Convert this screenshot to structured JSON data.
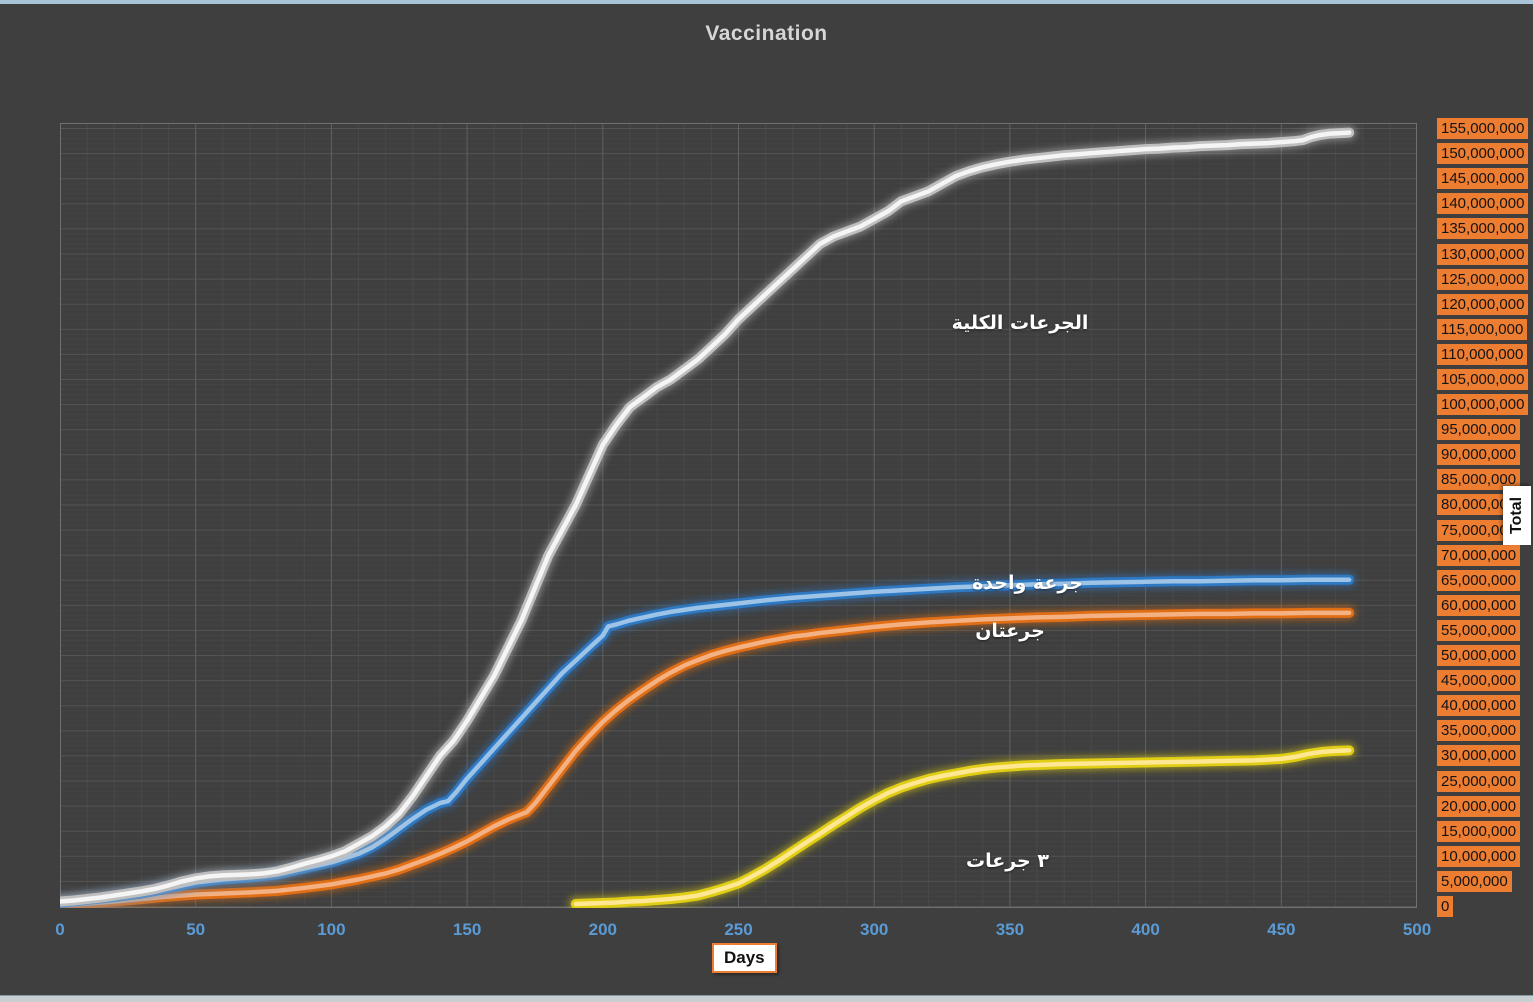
{
  "chart_data": {
    "type": "line",
    "title": "Vaccination",
    "background_color": "#3F3F3F",
    "grid": "on",
    "legend_position": "none (labels drawn next to lines)",
    "x_axis": {
      "label": "Days",
      "min": 0,
      "max": 500,
      "tick_step": 50,
      "minor_step": 10,
      "tick_values": [
        0,
        50,
        100,
        150,
        200,
        250,
        300,
        350,
        400,
        450,
        500
      ],
      "tick_labels": [
        "0",
        "50",
        "100",
        "150",
        "200",
        "250",
        "300",
        "350",
        "400",
        "450",
        "500"
      ],
      "tick_color": "#5B9BD5"
    },
    "y_axis": {
      "label": "Total",
      "unit": "doses",
      "min": 0,
      "max": 155000000,
      "tick_step": 5000000,
      "tick_values_millions": [
        155,
        150,
        145,
        140,
        135,
        130,
        125,
        120,
        115,
        110,
        105,
        100,
        95,
        90,
        85,
        80,
        75,
        70,
        65,
        60,
        55,
        50,
        45,
        40,
        35,
        30,
        25,
        20,
        15,
        10,
        5,
        0
      ],
      "tick_labels": [
        "155,000,000",
        "150,000,000",
        "145,000,000",
        "140,000,000",
        "135,000,000",
        "130,000,000",
        "125,000,000",
        "120,000,000",
        "115,000,000",
        "110,000,000",
        "105,000,000",
        "100,000,000",
        "95,000,000",
        "90,000,000",
        "85,000,000",
        "80,000,000",
        "75,000,000",
        "70,000,000",
        "65,000,000",
        "60,000,000",
        "55,000,000",
        "50,000,000",
        "45,000,000",
        "40,000,000",
        "35,000,000",
        "30,000,000",
        "25,000,000",
        "20,000,000",
        "15,000,000",
        "10,000,000",
        "5,000,000",
        "0"
      ],
      "tick_box_color": "#ED7D31",
      "tick_text_color": "#141414"
    },
    "series": [
      {
        "id": "total-doses",
        "label": "الجرعات الكلية",
        "color": "#BFBFBF",
        "core_color": "#F5F5F5",
        "points_day_millions": [
          [
            0,
            1
          ],
          [
            5,
            1.2
          ],
          [
            10,
            1.5
          ],
          [
            15,
            1.8
          ],
          [
            20,
            2.2
          ],
          [
            25,
            2.6
          ],
          [
            30,
            3
          ],
          [
            35,
            3.5
          ],
          [
            40,
            4.2
          ],
          [
            45,
            5
          ],
          [
            50,
            5.6
          ],
          [
            55,
            6
          ],
          [
            60,
            6.2
          ],
          [
            65,
            6.3
          ],
          [
            70,
            6.4
          ],
          [
            75,
            6.6
          ],
          [
            80,
            7
          ],
          [
            85,
            7.7
          ],
          [
            90,
            8.5
          ],
          [
            95,
            9.2
          ],
          [
            100,
            10
          ],
          [
            105,
            11
          ],
          [
            110,
            12.5
          ],
          [
            115,
            14
          ],
          [
            120,
            16
          ],
          [
            125,
            18.5
          ],
          [
            130,
            22
          ],
          [
            135,
            26
          ],
          [
            140,
            30
          ],
          [
            145,
            33
          ],
          [
            150,
            37
          ],
          [
            155,
            41.5
          ],
          [
            160,
            46
          ],
          [
            165,
            51.5
          ],
          [
            170,
            57
          ],
          [
            175,
            63.5
          ],
          [
            180,
            70
          ],
          [
            185,
            75
          ],
          [
            190,
            80
          ],
          [
            195,
            86
          ],
          [
            200,
            92
          ],
          [
            205,
            96
          ],
          [
            210,
            99.5
          ],
          [
            215,
            101.5
          ],
          [
            220,
            103.5
          ],
          [
            225,
            105
          ],
          [
            230,
            107
          ],
          [
            235,
            109
          ],
          [
            240,
            111.5
          ],
          [
            245,
            114
          ],
          [
            250,
            117
          ],
          [
            255,
            119.5
          ],
          [
            260,
            122
          ],
          [
            265,
            124.5
          ],
          [
            270,
            127
          ],
          [
            275,
            129.5
          ],
          [
            280,
            132
          ],
          [
            285,
            133.5
          ],
          [
            290,
            134.5
          ],
          [
            295,
            135.5
          ],
          [
            300,
            137
          ],
          [
            305,
            138.5
          ],
          [
            310,
            140.5
          ],
          [
            315,
            141.5
          ],
          [
            320,
            142.5
          ],
          [
            325,
            144
          ],
          [
            330,
            145.5
          ],
          [
            335,
            146.5
          ],
          [
            340,
            147.3
          ],
          [
            345,
            147.9
          ],
          [
            350,
            148.4
          ],
          [
            355,
            148.8
          ],
          [
            360,
            149.1
          ],
          [
            365,
            149.4
          ],
          [
            370,
            149.7
          ],
          [
            375,
            149.9
          ],
          [
            380,
            150.1
          ],
          [
            385,
            150.3
          ],
          [
            390,
            150.5
          ],
          [
            395,
            150.7
          ],
          [
            400,
            150.9
          ],
          [
            405,
            151
          ],
          [
            410,
            151.2
          ],
          [
            415,
            151.3
          ],
          [
            420,
            151.5
          ],
          [
            425,
            151.6
          ],
          [
            430,
            151.7
          ],
          [
            435,
            151.9
          ],
          [
            440,
            152
          ],
          [
            445,
            152.1
          ],
          [
            450,
            152.3
          ],
          [
            455,
            152.5
          ],
          [
            458,
            152.7
          ],
          [
            461,
            153.3
          ],
          [
            464,
            153.7
          ],
          [
            468,
            154
          ],
          [
            475,
            154.2
          ]
        ]
      },
      {
        "id": "one-dose",
        "label": "جرعة واحدة",
        "color": "#2E79C4",
        "core_color": "#9DC3E6",
        "points_day_millions": [
          [
            0,
            0.7
          ],
          [
            10,
            1.3
          ],
          [
            20,
            1.9
          ],
          [
            30,
            2.6
          ],
          [
            40,
            3.6
          ],
          [
            50,
            4.8
          ],
          [
            60,
            5.4
          ],
          [
            70,
            5.8
          ],
          [
            80,
            6.4
          ],
          [
            90,
            7.6
          ],
          [
            100,
            8.8
          ],
          [
            110,
            10.5
          ],
          [
            115,
            11.8
          ],
          [
            120,
            13.5
          ],
          [
            125,
            15.5
          ],
          [
            130,
            17.5
          ],
          [
            135,
            19.3
          ],
          [
            140,
            20.6
          ],
          [
            143,
            21
          ],
          [
            146,
            22.8
          ],
          [
            150,
            25.5
          ],
          [
            155,
            28.5
          ],
          [
            160,
            31.5
          ],
          [
            165,
            34.5
          ],
          [
            170,
            37.5
          ],
          [
            175,
            40.5
          ],
          [
            180,
            43.5
          ],
          [
            185,
            46.5
          ],
          [
            190,
            49
          ],
          [
            195,
            51.5
          ],
          [
            198,
            53
          ],
          [
            200,
            54
          ],
          [
            202,
            55.8
          ],
          [
            205,
            56.2
          ],
          [
            210,
            57
          ],
          [
            215,
            57.6
          ],
          [
            220,
            58.2
          ],
          [
            225,
            58.7
          ],
          [
            230,
            59.1
          ],
          [
            235,
            59.5
          ],
          [
            240,
            59.8
          ],
          [
            245,
            60.1
          ],
          [
            250,
            60.4
          ],
          [
            260,
            61
          ],
          [
            270,
            61.5
          ],
          [
            280,
            61.9
          ],
          [
            290,
            62.3
          ],
          [
            300,
            62.7
          ],
          [
            310,
            63
          ],
          [
            320,
            63.3
          ],
          [
            330,
            63.6
          ],
          [
            340,
            63.8
          ],
          [
            350,
            64
          ],
          [
            360,
            64.2
          ],
          [
            370,
            64.3
          ],
          [
            380,
            64.5
          ],
          [
            390,
            64.6
          ],
          [
            400,
            64.7
          ],
          [
            410,
            64.8
          ],
          [
            420,
            64.8
          ],
          [
            430,
            64.9
          ],
          [
            440,
            65
          ],
          [
            450,
            65
          ],
          [
            460,
            65.1
          ],
          [
            475,
            65.1
          ]
        ]
      },
      {
        "id": "two-doses",
        "label": "جرعتان",
        "color": "#E06E15",
        "core_color": "#F4B183",
        "points_day_millions": [
          [
            0,
            0.2
          ],
          [
            10,
            0.6
          ],
          [
            20,
            1
          ],
          [
            30,
            1.5
          ],
          [
            40,
            2
          ],
          [
            50,
            2.4
          ],
          [
            60,
            2.6
          ],
          [
            70,
            2.8
          ],
          [
            80,
            3.1
          ],
          [
            90,
            3.7
          ],
          [
            100,
            4.4
          ],
          [
            110,
            5.4
          ],
          [
            120,
            6.6
          ],
          [
            125,
            7.4
          ],
          [
            130,
            8.4
          ],
          [
            135,
            9.4
          ],
          [
            140,
            10.5
          ],
          [
            145,
            11.7
          ],
          [
            150,
            13
          ],
          [
            155,
            14.5
          ],
          [
            160,
            16
          ],
          [
            165,
            17.3
          ],
          [
            170,
            18.4
          ],
          [
            172,
            18.8
          ],
          [
            175,
            20.5
          ],
          [
            180,
            24
          ],
          [
            185,
            27.5
          ],
          [
            190,
            31
          ],
          [
            195,
            34
          ],
          [
            200,
            36.8
          ],
          [
            205,
            39.2
          ],
          [
            210,
            41.3
          ],
          [
            215,
            43.2
          ],
          [
            220,
            45
          ],
          [
            225,
            46.6
          ],
          [
            230,
            48
          ],
          [
            235,
            49.1
          ],
          [
            240,
            50.1
          ],
          [
            245,
            50.9
          ],
          [
            250,
            51.6
          ],
          [
            255,
            52.2
          ],
          [
            260,
            52.8
          ],
          [
            265,
            53.3
          ],
          [
            270,
            53.8
          ],
          [
            275,
            54.1
          ],
          [
            280,
            54.5
          ],
          [
            290,
            55.1
          ],
          [
            300,
            55.7
          ],
          [
            310,
            56.2
          ],
          [
            320,
            56.6
          ],
          [
            330,
            56.9
          ],
          [
            340,
            57.2
          ],
          [
            350,
            57.4
          ],
          [
            360,
            57.6
          ],
          [
            370,
            57.7
          ],
          [
            380,
            57.9
          ],
          [
            390,
            58
          ],
          [
            400,
            58.1
          ],
          [
            410,
            58.2
          ],
          [
            420,
            58.3
          ],
          [
            430,
            58.3
          ],
          [
            440,
            58.4
          ],
          [
            450,
            58.4
          ],
          [
            460,
            58.5
          ],
          [
            475,
            58.5
          ]
        ]
      },
      {
        "id": "three-doses",
        "label": "٣ جرعات",
        "color": "#E0CE14",
        "core_color": "#FFE794",
        "points_day_millions": [
          [
            190,
            0.5
          ],
          [
            195,
            0.6
          ],
          [
            200,
            0.7
          ],
          [
            205,
            0.8
          ],
          [
            210,
            1
          ],
          [
            215,
            1.1
          ],
          [
            220,
            1.3
          ],
          [
            225,
            1.5
          ],
          [
            230,
            1.8
          ],
          [
            235,
            2.2
          ],
          [
            240,
            2.9
          ],
          [
            245,
            3.7
          ],
          [
            250,
            4.6
          ],
          [
            255,
            6
          ],
          [
            260,
            7.5
          ],
          [
            265,
            9.2
          ],
          [
            270,
            11
          ],
          [
            275,
            12.8
          ],
          [
            280,
            14.5
          ],
          [
            285,
            16.3
          ],
          [
            290,
            18
          ],
          [
            295,
            19.7
          ],
          [
            300,
            21.2
          ],
          [
            305,
            22.6
          ],
          [
            310,
            23.7
          ],
          [
            315,
            24.6
          ],
          [
            320,
            25.4
          ],
          [
            325,
            26
          ],
          [
            330,
            26.5
          ],
          [
            335,
            27
          ],
          [
            340,
            27.4
          ],
          [
            345,
            27.7
          ],
          [
            350,
            27.9
          ],
          [
            355,
            28.1
          ],
          [
            360,
            28.2
          ],
          [
            370,
            28.4
          ],
          [
            380,
            28.5
          ],
          [
            390,
            28.6
          ],
          [
            400,
            28.7
          ],
          [
            410,
            28.8
          ],
          [
            420,
            28.9
          ],
          [
            430,
            29
          ],
          [
            440,
            29.1
          ],
          [
            450,
            29.4
          ],
          [
            455,
            29.8
          ],
          [
            460,
            30.4
          ],
          [
            465,
            30.8
          ],
          [
            470,
            31
          ],
          [
            475,
            31.1
          ]
        ]
      }
    ]
  }
}
